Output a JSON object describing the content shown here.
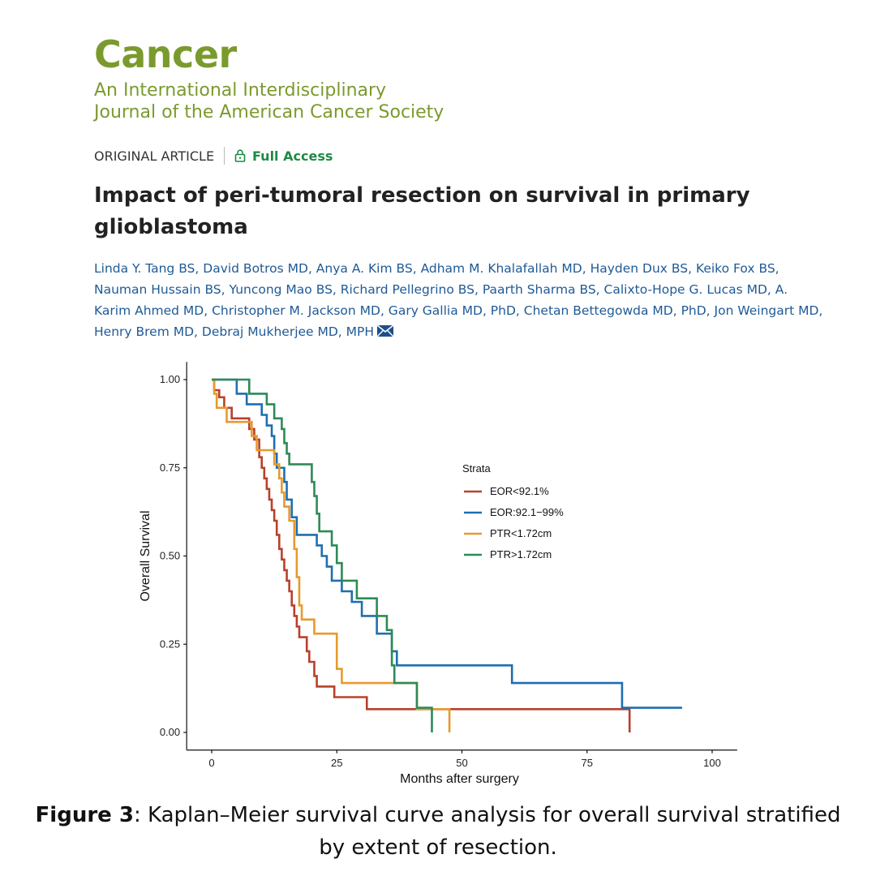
{
  "journal": {
    "name": "Cancer",
    "subtitle_line1": "An International Interdisciplinary",
    "subtitle_line2": "Journal of the American Cancer Society",
    "brand_color": "#7b9a2e"
  },
  "article": {
    "type": "ORIGINAL ARTICLE",
    "access": "Full Access",
    "title": "Impact of peri-tumoral resection on survival in primary glioblastoma",
    "authors": "Linda Y. Tang BS, David Botros MD, Anya A. Kim BS, Adham M. Khalafallah MD, Hayden Dux BS, Keiko Fox BS, Nauman Hussain BS, Yuncong Mao BS, Richard Pellegrino BS, Paarth Sharma BS, Calixto-Hope G. Lucas MD, A. Karim Ahmed MD, Christopher M. Jackson MD, Gary Gallia MD, PhD, Chetan Bettegowda MD, PhD, Jon Weingart MD, Henry Brem MD, Debraj Mukherjee MD, MPH",
    "mail_icon": "mail-icon"
  },
  "caption": {
    "label": "Figure 3",
    "text": ": Kaplan–Meier survival curve analysis for overall survival stratified by extent of resection."
  },
  "chart_data": {
    "type": "line",
    "xlabel": "Months after surgery",
    "ylabel": "Overall Survival",
    "xlim": [
      0,
      105
    ],
    "ylim": [
      0,
      1.05
    ],
    "xticks": [
      0,
      25,
      50,
      75,
      100
    ],
    "yticks": [
      "0.00",
      "0.25",
      "0.50",
      "0.75",
      "1.00"
    ],
    "legend_title": "Strata",
    "grid": false,
    "series": [
      {
        "name": "EOR<92.1%",
        "color": "#b8412c",
        "steps": [
          [
            0,
            1.0
          ],
          [
            0.5,
            0.97
          ],
          [
            1.5,
            0.95
          ],
          [
            2.5,
            0.92
          ],
          [
            4,
            0.89
          ],
          [
            5.5,
            0.89
          ],
          [
            7.5,
            0.86
          ],
          [
            8.5,
            0.83
          ],
          [
            9.5,
            0.78
          ],
          [
            10,
            0.75
          ],
          [
            10.5,
            0.72
          ],
          [
            11,
            0.69
          ],
          [
            11.5,
            0.66
          ],
          [
            12,
            0.63
          ],
          [
            12.5,
            0.6
          ],
          [
            13,
            0.56
          ],
          [
            13.5,
            0.52
          ],
          [
            14,
            0.49
          ],
          [
            14.5,
            0.46
          ],
          [
            15,
            0.43
          ],
          [
            15.5,
            0.4
          ],
          [
            16,
            0.36
          ],
          [
            16.5,
            0.33
          ],
          [
            17,
            0.3
          ],
          [
            17.5,
            0.27
          ],
          [
            19,
            0.23
          ],
          [
            19.5,
            0.2
          ],
          [
            20.5,
            0.16
          ],
          [
            21,
            0.13
          ],
          [
            24.5,
            0.1
          ],
          [
            31,
            0.066
          ],
          [
            83.5,
            0.066
          ]
        ],
        "end": [
          83.5,
          0.0
        ]
      },
      {
        "name": "EOR:92.1−99%",
        "color": "#1f6fb0",
        "steps": [
          [
            0,
            1.0
          ],
          [
            5,
            0.96
          ],
          [
            7,
            0.93
          ],
          [
            10,
            0.9
          ],
          [
            11,
            0.87
          ],
          [
            12,
            0.84
          ],
          [
            12.5,
            0.79
          ],
          [
            13,
            0.75
          ],
          [
            14.5,
            0.71
          ],
          [
            15,
            0.66
          ],
          [
            16,
            0.61
          ],
          [
            17,
            0.56
          ],
          [
            21,
            0.53
          ],
          [
            22,
            0.5
          ],
          [
            23,
            0.47
          ],
          [
            24,
            0.43
          ],
          [
            26,
            0.4
          ],
          [
            28,
            0.37
          ],
          [
            30,
            0.33
          ],
          [
            33,
            0.28
          ],
          [
            36,
            0.23
          ],
          [
            37,
            0.19
          ],
          [
            60,
            0.14
          ],
          [
            82,
            0.07
          ],
          [
            94,
            0.07
          ]
        ],
        "end": null
      },
      {
        "name": "PTR<1.72cm",
        "color": "#e69a2e",
        "steps": [
          [
            0,
            1.0
          ],
          [
            0.5,
            0.96
          ],
          [
            1,
            0.92
          ],
          [
            3,
            0.88
          ],
          [
            8,
            0.84
          ],
          [
            9,
            0.8
          ],
          [
            12.5,
            0.76
          ],
          [
            13.5,
            0.72
          ],
          [
            14,
            0.68
          ],
          [
            14.5,
            0.64
          ],
          [
            15.5,
            0.6
          ],
          [
            16.5,
            0.52
          ],
          [
            17,
            0.44
          ],
          [
            17.5,
            0.36
          ],
          [
            18,
            0.32
          ],
          [
            20.5,
            0.28
          ],
          [
            25,
            0.18
          ],
          [
            26,
            0.14
          ],
          [
            41,
            0.066
          ],
          [
            47.5,
            0.066
          ]
        ],
        "end": [
          47.5,
          0.0
        ]
      },
      {
        "name": "PTR>1.72cm",
        "color": "#2e8a57",
        "steps": [
          [
            0,
            1.0
          ],
          [
            7.5,
            0.96
          ],
          [
            11,
            0.93
          ],
          [
            12.5,
            0.89
          ],
          [
            14,
            0.86
          ],
          [
            14.5,
            0.82
          ],
          [
            15,
            0.79
          ],
          [
            15.5,
            0.76
          ],
          [
            20,
            0.71
          ],
          [
            20.5,
            0.67
          ],
          [
            21,
            0.62
          ],
          [
            21.5,
            0.57
          ],
          [
            24,
            0.53
          ],
          [
            25,
            0.48
          ],
          [
            26,
            0.43
          ],
          [
            29,
            0.38
          ],
          [
            33,
            0.33
          ],
          [
            35,
            0.29
          ],
          [
            36,
            0.19
          ],
          [
            36.5,
            0.14
          ],
          [
            41,
            0.07
          ],
          [
            44,
            0.07
          ]
        ],
        "end": [
          44,
          0.0
        ]
      }
    ]
  }
}
